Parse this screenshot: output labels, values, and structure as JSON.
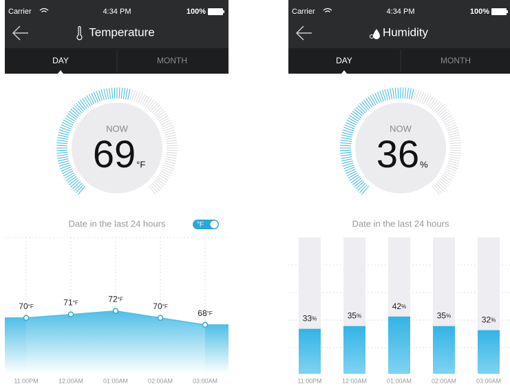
{
  "screens": [
    {
      "status": {
        "carrier": "Carrier",
        "time": "4:34 PM",
        "battery": "100%"
      },
      "title": "Temperature",
      "tabs": [
        "DAY",
        "MONTH"
      ],
      "gauge": {
        "label": "NOW",
        "value": 69,
        "unit": "°F"
      },
      "caption": "Date in the last 24 hours",
      "toggle": "°F",
      "chart_data": {
        "type": "area",
        "categories": [
          "11:00PM",
          "12:00AM",
          "01:00AM",
          "02:00AM",
          "03:00AM"
        ],
        "values": [
          70,
          71,
          72,
          70,
          68
        ],
        "unit": "°F",
        "color": "#4fbfe6",
        "ylim": [
          54,
          93
        ]
      }
    },
    {
      "status": {
        "carrier": "Carrier",
        "time": "4:34 PM",
        "battery": "100%"
      },
      "title": "Humidity",
      "tabs": [
        "DAY",
        "MONTH"
      ],
      "gauge": {
        "label": "NOW",
        "value": 36,
        "unit": "%"
      },
      "caption": "Date in the last 24 hours",
      "chart_data": {
        "type": "bar",
        "categories": [
          "11:00PM",
          "12:00AM",
          "01:00AM",
          "02:00AM",
          "03:00AM"
        ],
        "values": [
          33,
          35,
          42,
          35,
          32
        ],
        "unit": "%",
        "color": "#3db8e8",
        "ylim": [
          0,
          100
        ]
      }
    }
  ]
}
